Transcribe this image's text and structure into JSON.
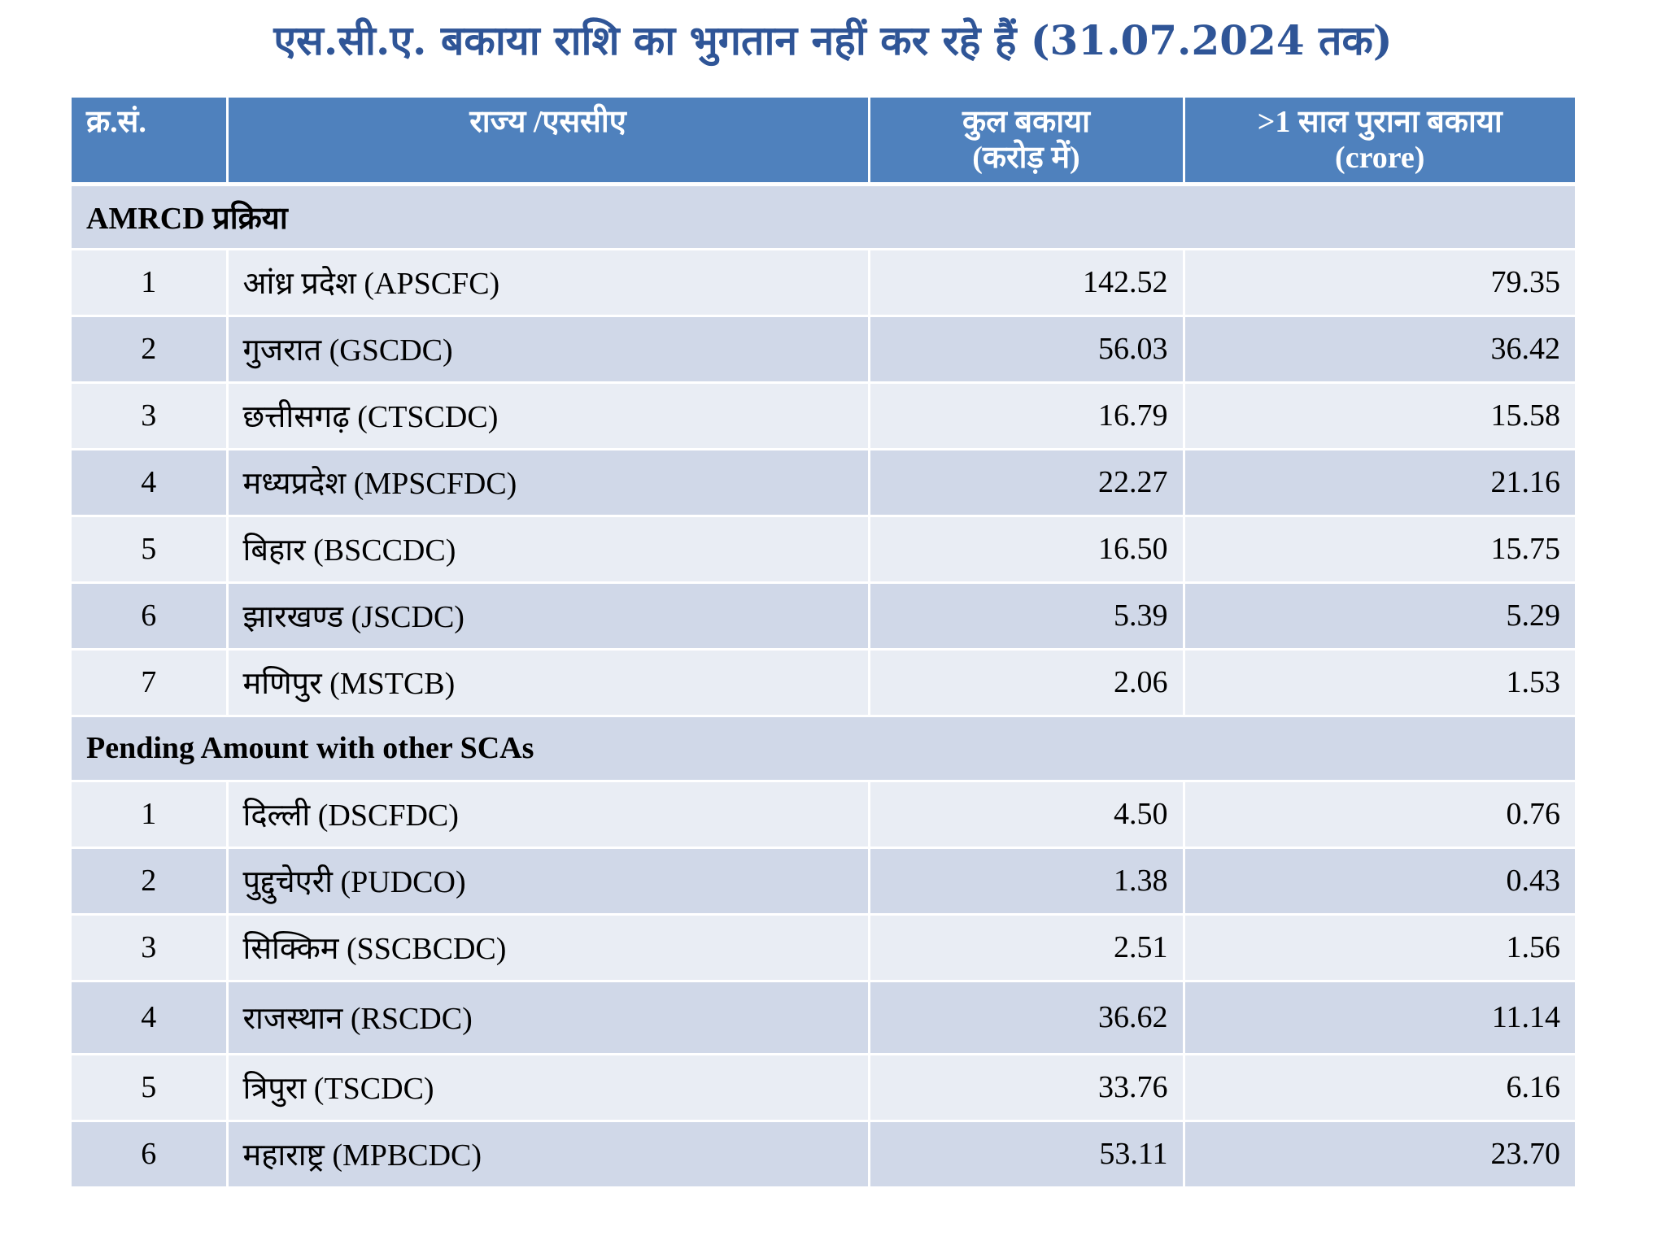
{
  "title": "एस.सी.ए. बकाया राशि का भुगतान नहीं कर रहे हैं (31.07.2024 तक)",
  "headers": {
    "serial": "क्र.सं.",
    "state": "राज्य /एससीए",
    "total_line1": "कुल बकाया",
    "total_line2": "(करोड़ में)",
    "old_line1": ">1  साल पुराना बकाया",
    "old_line2": "(crore)"
  },
  "sections": [
    {
      "title": "AMRCD प्रक्रिया",
      "rows": [
        {
          "no": "1",
          "name": "आंध्र प्रदेश (APSCFC)",
          "total": "142.52",
          "old": "79.35"
        },
        {
          "no": "2",
          "name": "गुजरात (GSCDC)",
          "total": "56.03",
          "old": "36.42"
        },
        {
          "no": "3",
          "name": "छत्तीसगढ़ (CTSCDC)",
          "total": "16.79",
          "old": "15.58"
        },
        {
          "no": "4",
          "name": "मध्यप्रदेश (MPSCFDC)",
          "total": "22.27",
          "old": "21.16"
        },
        {
          "no": "5",
          "name": "बिहार (BSCCDC)",
          "total": "16.50",
          "old": "15.75"
        },
        {
          "no": "6",
          "name": "झारखण्ड (JSCDC)",
          "total": "5.39",
          "old": "5.29"
        },
        {
          "no": "7",
          "name": "मणिपुर (MSTCB)",
          "total": "2.06",
          "old": "1.53"
        }
      ]
    },
    {
      "title": "Pending Amount with other SCAs",
      "rows": [
        {
          "no": "1",
          "name": "दिल्ली (DSCFDC)",
          "total": "4.50",
          "old": "0.76"
        },
        {
          "no": "2",
          "name": "पुद्दुचेएरी (PUDCO)",
          "total": "1.38",
          "old": "0.43"
        },
        {
          "no": "3",
          "name": "सिक्किम (SSCBCDC)",
          "total": "2.51",
          "old": "1.56"
        },
        {
          "no": "4",
          "name": "राजस्थान (RSCDC)",
          "total": "36.62",
          "old": "11.14"
        },
        {
          "no": "5",
          "name": "त्रिपुरा (TSCDC)",
          "total": "33.76",
          "old": "6.16"
        },
        {
          "no": "6",
          "name": "महाराष्ट्र (MPBCDC)",
          "total": "53.11",
          "old": "23.70"
        }
      ]
    }
  ]
}
